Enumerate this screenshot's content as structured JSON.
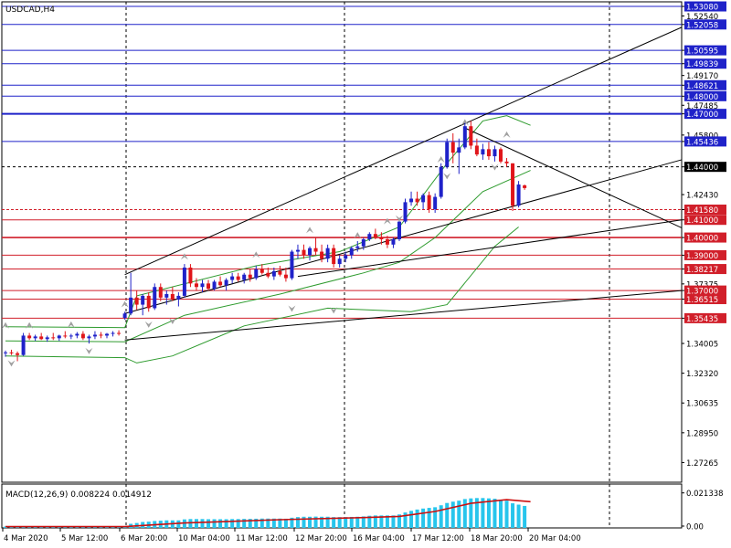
{
  "header": {
    "symbol_label": "USDCAD,H4"
  },
  "macd": {
    "label": "MACD(12,26,9) 0.008224 0.014912",
    "scale_labels": [
      "0.021338",
      "0.00"
    ]
  },
  "colors": {
    "bull": "#1f22c9",
    "bear": "#e0151a",
    "blue_level": "#1f22c9",
    "red_level": "#d11f2a",
    "bollinger": "#2e9b2e",
    "hist": "#27c5ec",
    "signal": "#cc1010",
    "dark_line": "#000000"
  },
  "chart_data": {
    "type": "candlestick",
    "symbol": "USDCAD",
    "timeframe": "H4",
    "price_axis_ticks": [
      "1.53080",
      "1.52540",
      "1.52058",
      "1.50595",
      "1.49839",
      "1.49170",
      "1.48621",
      "1.48000",
      "1.47485",
      "1.47000",
      "1.45800",
      "1.45436",
      "1.44000",
      "1.42430",
      "1.41580",
      "1.41000",
      "1.40000",
      "1.39000",
      "1.38217",
      "1.37375",
      "1.37000",
      "1.36515",
      "1.35435",
      "1.34005",
      "1.32320",
      "1.30635",
      "1.28950",
      "1.27265"
    ],
    "price_range": [
      1.2615,
      1.5334
    ],
    "time_axis_labels": [
      "4 Mar 2020",
      "5 Mar 12:00",
      "6 Mar 20:00",
      "10 Mar 04:00",
      "11 Mar 12:00",
      "12 Mar 20:00",
      "16 Mar 04:00",
      "17 Mar 12:00",
      "18 Mar 20:00",
      "20 Mar 04:00"
    ],
    "blue_levels": [
      1.5308,
      1.52058,
      1.50595,
      1.49839,
      1.48621,
      1.48,
      1.47,
      1.45436
    ],
    "red_levels": [
      1.4158,
      1.41,
      1.4,
      1.39,
      1.38217,
      1.37,
      1.36515,
      1.35435
    ],
    "dashed_level": 1.44,
    "candles": [
      [
        1.3345,
        1.336,
        1.3325,
        1.335
      ],
      [
        1.335,
        1.3365,
        1.3335,
        1.3345
      ],
      [
        1.3345,
        1.3355,
        1.33,
        1.3335
      ],
      [
        1.3335,
        1.346,
        1.333,
        1.3445
      ],
      [
        1.3445,
        1.346,
        1.342,
        1.343
      ],
      [
        1.343,
        1.345,
        1.3415,
        1.344
      ],
      [
        1.344,
        1.346,
        1.342,
        1.3425
      ],
      [
        1.3425,
        1.3445,
        1.341,
        1.3435
      ],
      [
        1.3435,
        1.346,
        1.342,
        1.343
      ],
      [
        1.343,
        1.345,
        1.3415,
        1.3445
      ],
      [
        1.3445,
        1.347,
        1.343,
        1.344
      ],
      [
        1.344,
        1.3455,
        1.3425,
        1.3445
      ],
      [
        1.3445,
        1.3465,
        1.343,
        1.3455
      ],
      [
        1.3455,
        1.347,
        1.342,
        1.343
      ],
      [
        1.343,
        1.345,
        1.34,
        1.344
      ],
      [
        1.344,
        1.347,
        1.3425,
        1.345
      ],
      [
        1.345,
        1.3465,
        1.343,
        1.3445
      ],
      [
        1.3445,
        1.346,
        1.343,
        1.3455
      ],
      [
        1.3455,
        1.347,
        1.344,
        1.346
      ],
      [
        1.346,
        1.3475,
        1.3445,
        1.3455
      ],
      [
        1.3545,
        1.358,
        1.3535,
        1.357
      ],
      [
        1.357,
        1.38,
        1.356,
        1.366
      ],
      [
        1.366,
        1.37,
        1.359,
        1.362
      ],
      [
        1.362,
        1.368,
        1.356,
        1.367
      ],
      [
        1.367,
        1.369,
        1.358,
        1.36
      ],
      [
        1.36,
        1.374,
        1.359,
        1.372
      ],
      [
        1.372,
        1.374,
        1.364,
        1.366
      ],
      [
        1.366,
        1.37,
        1.362,
        1.368
      ],
      [
        1.368,
        1.372,
        1.364,
        1.365
      ],
      [
        1.365,
        1.369,
        1.361,
        1.367
      ],
      [
        1.367,
        1.385,
        1.366,
        1.383
      ],
      [
        1.383,
        1.385,
        1.372,
        1.374
      ],
      [
        1.374,
        1.377,
        1.37,
        1.372
      ],
      [
        1.372,
        1.376,
        1.369,
        1.374
      ],
      [
        1.374,
        1.376,
        1.37,
        1.371
      ],
      [
        1.371,
        1.376,
        1.37,
        1.375
      ],
      [
        1.375,
        1.378,
        1.372,
        1.373
      ],
      [
        1.373,
        1.377,
        1.37,
        1.376
      ],
      [
        1.376,
        1.38,
        1.374,
        1.378
      ],
      [
        1.378,
        1.38,
        1.375,
        1.376
      ],
      [
        1.376,
        1.38,
        1.374,
        1.379
      ],
      [
        1.379,
        1.382,
        1.375,
        1.377
      ],
      [
        1.377,
        1.384,
        1.376,
        1.382
      ],
      [
        1.382,
        1.385,
        1.379,
        1.38
      ],
      [
        1.38,
        1.383,
        1.377,
        1.378
      ],
      [
        1.378,
        1.383,
        1.376,
        1.381
      ],
      [
        1.381,
        1.384,
        1.378,
        1.379
      ],
      [
        1.379,
        1.383,
        1.375,
        1.377
      ],
      [
        1.377,
        1.393,
        1.376,
        1.392
      ],
      [
        1.392,
        1.396,
        1.388,
        1.393
      ],
      [
        1.393,
        1.396,
        1.388,
        1.39
      ],
      [
        1.39,
        1.395,
        1.387,
        1.394
      ],
      [
        1.394,
        1.4,
        1.39,
        1.392
      ],
      [
        1.392,
        1.396,
        1.386,
        1.388
      ],
      [
        1.388,
        1.396,
        1.386,
        1.394
      ],
      [
        1.394,
        1.396,
        1.383,
        1.385
      ],
      [
        1.385,
        1.39,
        1.383,
        1.388
      ],
      [
        1.388,
        1.392,
        1.386,
        1.39
      ],
      [
        1.39,
        1.395,
        1.388,
        1.394
      ],
      [
        1.394,
        1.398,
        1.392,
        1.395
      ],
      [
        1.395,
        1.4,
        1.393,
        1.399
      ],
      [
        1.399,
        1.403,
        1.398,
        1.402
      ],
      [
        1.402,
        1.405,
        1.399,
        1.4
      ],
      [
        1.4,
        1.403,
        1.396,
        1.399
      ],
      [
        1.399,
        1.401,
        1.394,
        1.396
      ],
      [
        1.396,
        1.4,
        1.394,
        1.399
      ],
      [
        1.399,
        1.41,
        1.398,
        1.409
      ],
      [
        1.409,
        1.422,
        1.408,
        1.42
      ],
      [
        1.42,
        1.426,
        1.418,
        1.422
      ],
      [
        1.422,
        1.426,
        1.418,
        1.42
      ],
      [
        1.42,
        1.425,
        1.416,
        1.424
      ],
      [
        1.424,
        1.426,
        1.414,
        1.416
      ],
      [
        1.416,
        1.425,
        1.414,
        1.423
      ],
      [
        1.423,
        1.442,
        1.422,
        1.44
      ],
      [
        1.44,
        1.456,
        1.439,
        1.454
      ],
      [
        1.454,
        1.459,
        1.442,
        1.448
      ],
      [
        1.448,
        1.456,
        1.436,
        1.451
      ],
      [
        1.451,
        1.465,
        1.45,
        1.463
      ],
      [
        1.463,
        1.466,
        1.45,
        1.452
      ],
      [
        1.452,
        1.456,
        1.446,
        1.447
      ],
      [
        1.447,
        1.453,
        1.444,
        1.45
      ],
      [
        1.45,
        1.454,
        1.444,
        1.446
      ],
      [
        1.446,
        1.452,
        1.443,
        1.45
      ],
      [
        1.45,
        1.451,
        1.442,
        1.443
      ],
      [
        1.443,
        1.445,
        1.44,
        1.442
      ],
      [
        1.442,
        1.442,
        1.415,
        1.418
      ],
      [
        1.418,
        1.432,
        1.417,
        1.43
      ],
      [
        1.4295,
        1.43,
        1.427,
        1.428
      ]
    ],
    "bollinger_upper": [
      [
        0,
        1.3495
      ],
      [
        20,
        1.349
      ],
      [
        22,
        1.367
      ],
      [
        42,
        1.384
      ],
      [
        56,
        1.392
      ],
      [
        66,
        1.406
      ],
      [
        74,
        1.442
      ],
      [
        80,
        1.466
      ],
      [
        84,
        1.469
      ],
      [
        88,
        1.4635
      ]
    ],
    "bollinger_middle": [
      [
        0,
        1.3415
      ],
      [
        20,
        1.341
      ],
      [
        30,
        1.356
      ],
      [
        46,
        1.368
      ],
      [
        60,
        1.38
      ],
      [
        66,
        1.386
      ],
      [
        72,
        1.4
      ],
      [
        80,
        1.426
      ],
      [
        88,
        1.438
      ]
    ],
    "bollinger_lower": [
      [
        0,
        1.333
      ],
      [
        20,
        1.332
      ],
      [
        22,
        1.329
      ],
      [
        28,
        1.333
      ],
      [
        40,
        1.35
      ],
      [
        54,
        1.36
      ],
      [
        68,
        1.358
      ],
      [
        74,
        1.362
      ],
      [
        82,
        1.395
      ],
      [
        86,
        1.406
      ]
    ],
    "trendlines": [
      {
        "from": [
          20,
          1.379
        ],
        "to": [
          130,
          1.519
        ]
      },
      {
        "from": [
          20,
          1.357
        ],
        "to": [
          130,
          1.444
        ]
      },
      {
        "from": [
          49,
          1.378
        ],
        "to": [
          130,
          1.41
        ]
      },
      {
        "from": [
          20,
          1.342
        ],
        "to": [
          130,
          1.37
        ]
      },
      {
        "from": [
          77,
          1.462
        ],
        "to": [
          130,
          1.4055
        ]
      }
    ],
    "fractals_up": [
      [
        0,
        1.35
      ],
      [
        4,
        1.35
      ],
      [
        11,
        1.3505
      ],
      [
        20,
        1.362
      ],
      [
        30,
        1.389
      ],
      [
        42,
        1.39
      ],
      [
        51,
        1.404
      ],
      [
        59,
        1.401
      ],
      [
        64,
        1.409
      ],
      [
        73,
        1.444
      ],
      [
        77,
        1.465
      ],
      [
        84,
        1.458
      ]
    ],
    "fractals_down": [
      [
        1,
        1.329
      ],
      [
        14,
        1.336
      ],
      [
        24,
        1.351
      ],
      [
        28,
        1.353
      ],
      [
        48,
        1.36
      ],
      [
        55,
        1.359
      ],
      [
        66,
        1.411
      ],
      [
        74,
        1.435
      ],
      [
        82,
        1.44
      ]
    ],
    "macd_histogram": [
      0.0008,
      0.0008,
      0.0008,
      0.0007,
      0.0007,
      0.0007,
      0.0008,
      0.0007,
      0.0007,
      0.0007,
      0.0008,
      0.0008,
      0.0008,
      0.0007,
      0.0007,
      0.0008,
      0.0008,
      0.0008,
      0.0008,
      0.0008,
      0.001,
      0.0025,
      0.003,
      0.0036,
      0.0038,
      0.0042,
      0.0044,
      0.0046,
      0.0046,
      0.0046,
      0.0052,
      0.0054,
      0.0054,
      0.0054,
      0.0053,
      0.0053,
      0.0053,
      0.0053,
      0.0054,
      0.0054,
      0.0055,
      0.0055,
      0.0056,
      0.0057,
      0.0057,
      0.0057,
      0.0057,
      0.0056,
      0.0062,
      0.0066,
      0.0068,
      0.0068,
      0.0069,
      0.0068,
      0.0068,
      0.0066,
      0.0066,
      0.0066,
      0.0067,
      0.0068,
      0.007,
      0.0074,
      0.0076,
      0.0076,
      0.0076,
      0.0076,
      0.0082,
      0.0094,
      0.0104,
      0.0112,
      0.0118,
      0.0122,
      0.0126,
      0.0138,
      0.0152,
      0.016,
      0.0166,
      0.0176,
      0.018,
      0.0182,
      0.0182,
      0.018,
      0.0178,
      0.0172,
      0.0166,
      0.015,
      0.0142,
      0.0134
    ],
    "macd_signal": [
      [
        0,
        0.0008
      ],
      [
        20,
        0.0008
      ],
      [
        30,
        0.003
      ],
      [
        46,
        0.005
      ],
      [
        60,
        0.0063
      ],
      [
        66,
        0.007
      ],
      [
        72,
        0.01
      ],
      [
        78,
        0.015
      ],
      [
        84,
        0.0172
      ],
      [
        88,
        0.016
      ]
    ],
    "macd_range": [
      0.0,
      0.0245
    ]
  }
}
